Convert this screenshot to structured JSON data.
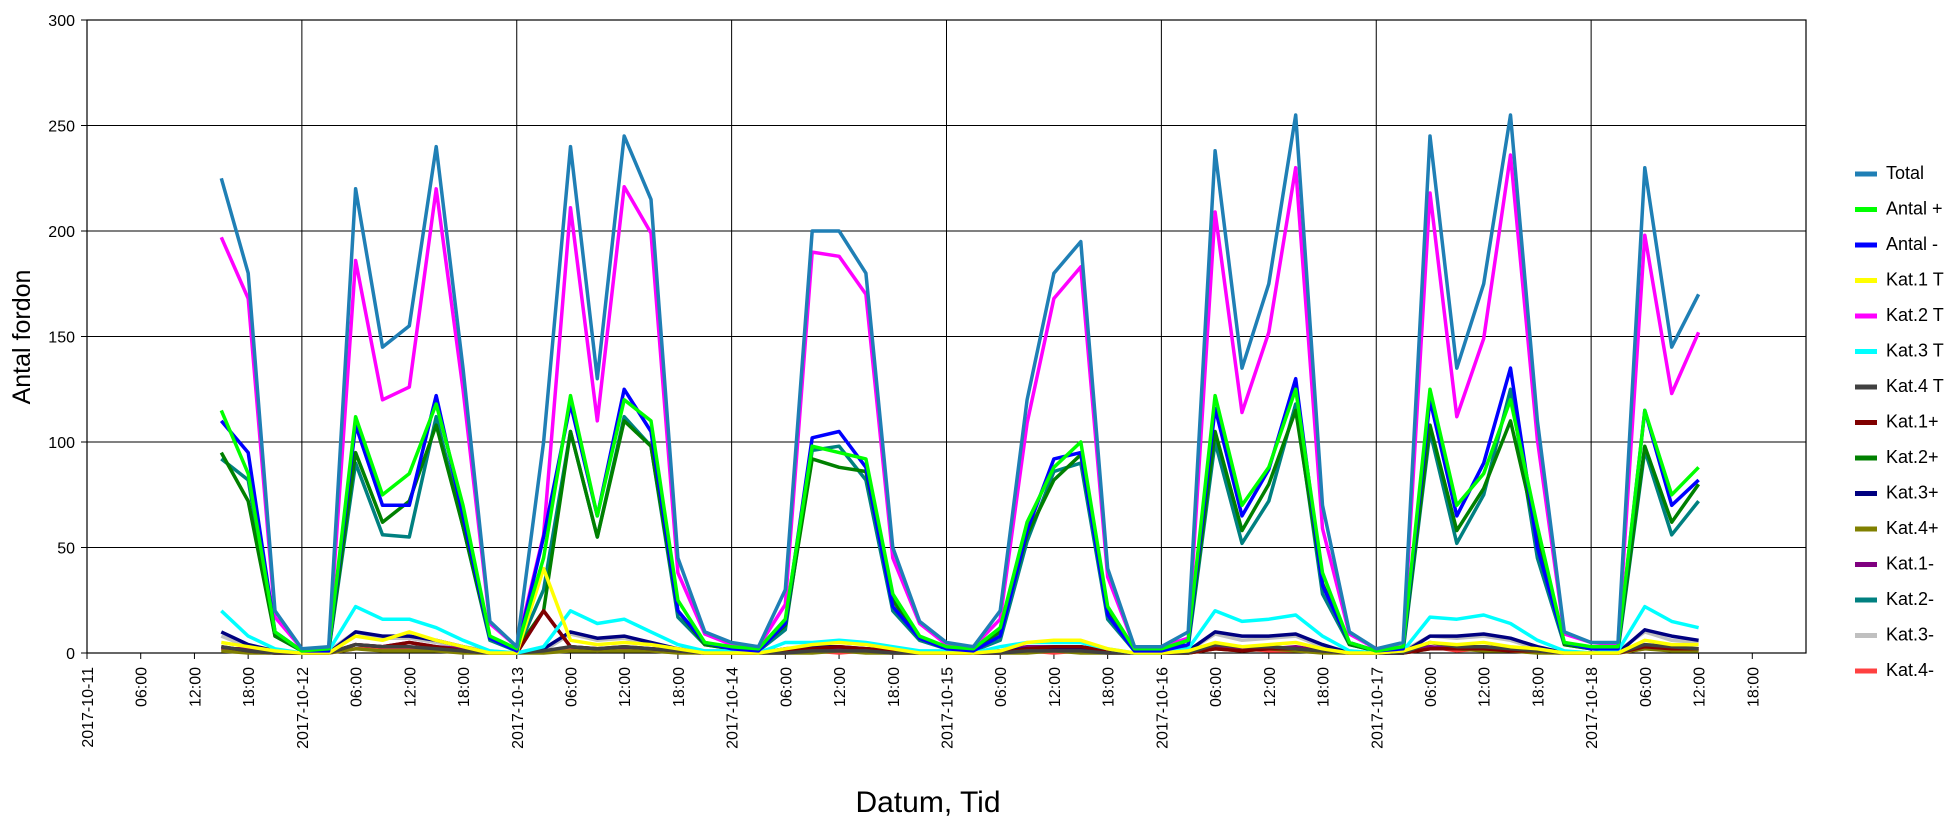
{
  "chart_data": {
    "type": "line",
    "y_label": "Antal fordon",
    "x_label": "Datum, Tid",
    "x": [
      "2017-10-11 15:00",
      "2017-10-11 18:00",
      "2017-10-11 21:00",
      "2017-10-12 00:00",
      "2017-10-12 03:00",
      "2017-10-12 06:00",
      "2017-10-12 09:00",
      "2017-10-12 12:00",
      "2017-10-12 15:00",
      "2017-10-12 18:00",
      "2017-10-12 21:00",
      "2017-10-13 00:00",
      "2017-10-13 03:00",
      "2017-10-13 06:00",
      "2017-10-13 09:00",
      "2017-10-13 12:00",
      "2017-10-13 15:00",
      "2017-10-13 18:00",
      "2017-10-13 21:00",
      "2017-10-14 00:00",
      "2017-10-14 03:00",
      "2017-10-14 06:00",
      "2017-10-14 09:00",
      "2017-10-14 12:00",
      "2017-10-14 15:00",
      "2017-10-14 18:00",
      "2017-10-14 21:00",
      "2017-10-15 00:00",
      "2017-10-15 03:00",
      "2017-10-15 06:00",
      "2017-10-15 09:00",
      "2017-10-15 12:00",
      "2017-10-15 15:00",
      "2017-10-15 18:00",
      "2017-10-15 21:00",
      "2017-10-16 00:00",
      "2017-10-16 03:00",
      "2017-10-16 06:00",
      "2017-10-16 09:00",
      "2017-10-16 12:00",
      "2017-10-16 15:00",
      "2017-10-16 18:00",
      "2017-10-16 21:00",
      "2017-10-17 00:00",
      "2017-10-17 03:00",
      "2017-10-17 06:00",
      "2017-10-17 09:00",
      "2017-10-17 12:00",
      "2017-10-17 15:00",
      "2017-10-17 18:00",
      "2017-10-17 21:00",
      "2017-10-18 00:00",
      "2017-10-18 03:00",
      "2017-10-18 06:00",
      "2017-10-18 09:00",
      "2017-10-18 12:00"
    ],
    "xlim": [
      "2017-10-11 00:00",
      "2017-10-19 00:00"
    ],
    "xticks": [
      {
        "value": "2017-10-11 00:00",
        "label": "2017-10-11"
      },
      {
        "value": "2017-10-11 06:00",
        "label": "06:00"
      },
      {
        "value": "2017-10-11 12:00",
        "label": "12:00"
      },
      {
        "value": "2017-10-11 18:00",
        "label": "18:00"
      },
      {
        "value": "2017-10-12 00:00",
        "label": "2017-10-12"
      },
      {
        "value": "2017-10-12 06:00",
        "label": "06:00"
      },
      {
        "value": "2017-10-12 12:00",
        "label": "12:00"
      },
      {
        "value": "2017-10-12 18:00",
        "label": "18:00"
      },
      {
        "value": "2017-10-13 00:00",
        "label": "2017-10-13"
      },
      {
        "value": "2017-10-13 06:00",
        "label": "06:00"
      },
      {
        "value": "2017-10-13 12:00",
        "label": "12:00"
      },
      {
        "value": "2017-10-13 18:00",
        "label": "18:00"
      },
      {
        "value": "2017-10-14 00:00",
        "label": "2017-10-14"
      },
      {
        "value": "2017-10-14 06:00",
        "label": "06:00"
      },
      {
        "value": "2017-10-14 12:00",
        "label": "12:00"
      },
      {
        "value": "2017-10-14 18:00",
        "label": "18:00"
      },
      {
        "value": "2017-10-15 00:00",
        "label": "2017-10-15"
      },
      {
        "value": "2017-10-15 06:00",
        "label": "06:00"
      },
      {
        "value": "2017-10-15 12:00",
        "label": "12:00"
      },
      {
        "value": "2017-10-15 18:00",
        "label": "18:00"
      },
      {
        "value": "2017-10-16 00:00",
        "label": "2017-10-16"
      },
      {
        "value": "2017-10-16 06:00",
        "label": "06:00"
      },
      {
        "value": "2017-10-16 12:00",
        "label": "12:00"
      },
      {
        "value": "2017-10-16 18:00",
        "label": "18:00"
      },
      {
        "value": "2017-10-17 00:00",
        "label": "2017-10-17"
      },
      {
        "value": "2017-10-17 06:00",
        "label": "06:00"
      },
      {
        "value": "2017-10-17 12:00",
        "label": "12:00"
      },
      {
        "value": "2017-10-17 18:00",
        "label": "18:00"
      },
      {
        "value": "2017-10-18 00:00",
        "label": "2017-10-18"
      },
      {
        "value": "2017-10-18 06:00",
        "label": "06:00"
      },
      {
        "value": "2017-10-18 12:00",
        "label": "12:00"
      },
      {
        "value": "2017-10-18 18:00",
        "label": "18:00"
      }
    ],
    "ylim": [
      0,
      300
    ],
    "yticks": [
      0,
      50,
      100,
      150,
      200,
      250,
      300
    ],
    "grid": true,
    "legend": "right",
    "series": [
      {
        "name": "Total",
        "color": "#1f7fb5",
        "values": [
          225,
          180,
          20,
          2,
          3,
          220,
          145,
          155,
          240,
          135,
          15,
          3,
          100,
          240,
          130,
          245,
          215,
          45,
          10,
          5,
          3,
          30,
          200,
          200,
          180,
          50,
          15,
          5,
          3,
          20,
          120,
          180,
          195,
          40,
          3,
          3,
          10,
          238,
          135,
          175,
          255,
          70,
          10,
          2,
          5,
          245,
          135,
          175,
          255,
          110,
          10,
          5,
          5,
          230,
          145,
          170
        ]
      },
      {
        "name": "Antal +",
        "color": "#00ff00",
        "values": [
          115,
          85,
          10,
          1,
          2,
          112,
          75,
          85,
          118,
          70,
          8,
          2,
          45,
          122,
          65,
          120,
          110,
          25,
          5,
          3,
          2,
          16,
          98,
          95,
          92,
          28,
          8,
          3,
          2,
          12,
          62,
          88,
          100,
          22,
          2,
          2,
          6,
          122,
          70,
          88,
          125,
          38,
          5,
          1,
          3,
          125,
          70,
          85,
          120,
          60,
          5,
          3,
          3,
          115,
          75,
          88
        ]
      },
      {
        "name": "Antal -",
        "color": "#0000ff",
        "values": [
          110,
          95,
          10,
          1,
          1,
          108,
          70,
          70,
          122,
          65,
          7,
          1,
          55,
          118,
          65,
          125,
          105,
          20,
          5,
          2,
          1,
          14,
          102,
          105,
          88,
          22,
          7,
          2,
          1,
          8,
          58,
          92,
          95,
          18,
          1,
          1,
          4,
          116,
          65,
          87,
          130,
          32,
          5,
          1,
          2,
          120,
          65,
          90,
          135,
          50,
          5,
          2,
          2,
          115,
          70,
          82
        ]
      },
      {
        "name": "Kat.1 T",
        "color": "#ffff00",
        "values": [
          5,
          3,
          1,
          0,
          0,
          8,
          6,
          10,
          6,
          3,
          0,
          0,
          40,
          6,
          4,
          5,
          4,
          2,
          0,
          0,
          0,
          2,
          4,
          5,
          4,
          2,
          0,
          0,
          0,
          1,
          5,
          6,
          6,
          2,
          0,
          0,
          1,
          5,
          3,
          4,
          5,
          2,
          0,
          0,
          1,
          5,
          4,
          5,
          3,
          2,
          0,
          0,
          0,
          6,
          4,
          4
        ]
      },
      {
        "name": "Kat.2 T",
        "color": "#ff00ff",
        "values": [
          197,
          168,
          17,
          2,
          2,
          186,
          120,
          126,
          220,
          125,
          14,
          3,
          56,
          211,
          110,
          221,
          199,
          38,
          9,
          4,
          3,
          23,
          190,
          188,
          170,
          45,
          14,
          4,
          3,
          16,
          109,
          168,
          183,
          36,
          3,
          3,
          7,
          209,
          114,
          152,
          230,
          59,
          9,
          2,
          3,
          218,
          112,
          149,
          236,
          101,
          9,
          5,
          4,
          198,
          123,
          152
        ]
      },
      {
        "name": "Kat.3 T",
        "color": "#00ffff",
        "values": [
          20,
          8,
          2,
          0,
          1,
          22,
          16,
          16,
          12,
          6,
          1,
          0,
          3,
          20,
          14,
          16,
          10,
          4,
          1,
          1,
          0,
          5,
          5,
          6,
          5,
          3,
          1,
          1,
          0,
          3,
          5,
          5,
          5,
          2,
          0,
          0,
          2,
          20,
          15,
          16,
          18,
          8,
          1,
          0,
          1,
          17,
          16,
          18,
          14,
          6,
          1,
          0,
          1,
          22,
          15,
          12
        ]
      },
      {
        "name": "Kat.4 T",
        "color": "#404040",
        "values": [
          3,
          1,
          0,
          0,
          0,
          4,
          3,
          3,
          2,
          1,
          0,
          0,
          1,
          3,
          2,
          3,
          2,
          1,
          0,
          0,
          0,
          0,
          1,
          1,
          1,
          0,
          0,
          0,
          0,
          0,
          1,
          1,
          1,
          0,
          0,
          0,
          0,
          4,
          3,
          3,
          2,
          1,
          0,
          0,
          0,
          5,
          3,
          3,
          2,
          1,
          0,
          0,
          0,
          4,
          3,
          2
        ]
      },
      {
        "name": "Kat.1+",
        "color": "#800000",
        "values": [
          3,
          1,
          0,
          0,
          0,
          4,
          3,
          5,
          3,
          1,
          0,
          0,
          20,
          3,
          2,
          3,
          2,
          1,
          0,
          0,
          0,
          1,
          2,
          3,
          2,
          1,
          0,
          0,
          0,
          0,
          2,
          3,
          3,
          1,
          0,
          0,
          0,
          2,
          1,
          2,
          2,
          1,
          0,
          0,
          0,
          2,
          2,
          2,
          1,
          1,
          0,
          0,
          0,
          3,
          2,
          2
        ]
      },
      {
        "name": "Kat.2+",
        "color": "#008000",
        "values": [
          95,
          72,
          8,
          1,
          1,
          95,
          62,
          72,
          108,
          60,
          7,
          2,
          20,
          105,
          55,
          110,
          98,
          20,
          4,
          2,
          2,
          13,
          92,
          88,
          86,
          25,
          7,
          2,
          2,
          10,
          56,
          82,
          94,
          20,
          2,
          2,
          4,
          105,
          58,
          80,
          115,
          33,
          4,
          1,
          2,
          108,
          58,
          78,
          110,
          55,
          4,
          2,
          2,
          98,
          62,
          80
        ]
      },
      {
        "name": "Kat.3+",
        "color": "#000080",
        "values": [
          10,
          4,
          1,
          0,
          0,
          10,
          8,
          8,
          6,
          3,
          0,
          0,
          2,
          10,
          7,
          8,
          5,
          2,
          0,
          0,
          0,
          2,
          3,
          3,
          2,
          1,
          0,
          0,
          0,
          1,
          2,
          2,
          2,
          1,
          0,
          0,
          1,
          10,
          8,
          8,
          9,
          4,
          0,
          0,
          0,
          8,
          8,
          9,
          7,
          3,
          0,
          0,
          0,
          11,
          8,
          6
        ]
      },
      {
        "name": "Kat.4+",
        "color": "#808000",
        "values": [
          1,
          0,
          0,
          0,
          0,
          2,
          1,
          1,
          1,
          0,
          0,
          0,
          0,
          1,
          1,
          1,
          1,
          0,
          0,
          0,
          0,
          0,
          0,
          1,
          0,
          0,
          0,
          0,
          0,
          0,
          0,
          1,
          0,
          0,
          0,
          0,
          0,
          2,
          1,
          2,
          1,
          0,
          0,
          0,
          0,
          2,
          2,
          1,
          1,
          0,
          0,
          0,
          0,
          2,
          1,
          1
        ]
      },
      {
        "name": "Kat.1-",
        "color": "#800080",
        "values": [
          2,
          2,
          1,
          0,
          0,
          4,
          3,
          5,
          3,
          2,
          0,
          0,
          20,
          3,
          2,
          2,
          2,
          1,
          0,
          0,
          0,
          1,
          2,
          2,
          2,
          1,
          0,
          0,
          0,
          1,
          3,
          3,
          3,
          1,
          0,
          0,
          1,
          3,
          2,
          2,
          3,
          1,
          0,
          0,
          1,
          3,
          2,
          3,
          2,
          1,
          0,
          0,
          0,
          3,
          2,
          2
        ]
      },
      {
        "name": "Kat.2-",
        "color": "#008080",
        "values": [
          92,
          82,
          8,
          1,
          1,
          90,
          56,
          55,
          112,
          60,
          6,
          1,
          30,
          105,
          55,
          112,
          98,
          17,
          4,
          2,
          1,
          11,
          96,
          98,
          82,
          20,
          6,
          2,
          1,
          6,
          53,
          86,
          90,
          16,
          1,
          1,
          3,
          100,
          52,
          72,
          118,
          28,
          4,
          1,
          1,
          105,
          52,
          75,
          125,
          45,
          4,
          2,
          1,
          96,
          56,
          72
        ]
      },
      {
        "name": "Kat.3-",
        "color": "#c0c0c0",
        "values": [
          8,
          3,
          1,
          0,
          1,
          10,
          7,
          7,
          5,
          3,
          1,
          0,
          1,
          9,
          6,
          7,
          4,
          2,
          1,
          1,
          0,
          2,
          2,
          2,
          2,
          1,
          0,
          0,
          0,
          1,
          2,
          2,
          2,
          1,
          0,
          0,
          1,
          9,
          6,
          7,
          8,
          3,
          1,
          0,
          1,
          8,
          7,
          8,
          6,
          2,
          0,
          0,
          1,
          10,
          6,
          5
        ]
      },
      {
        "name": "Kat.4-",
        "color": "#ff4040",
        "values": [
          2,
          1,
          0,
          0,
          0,
          2,
          2,
          2,
          1,
          1,
          0,
          0,
          1,
          2,
          1,
          2,
          1,
          1,
          0,
          0,
          0,
          0,
          1,
          0,
          1,
          0,
          0,
          0,
          0,
          0,
          1,
          0,
          1,
          0,
          0,
          0,
          0,
          2,
          2,
          1,
          1,
          1,
          0,
          0,
          0,
          3,
          1,
          2,
          1,
          1,
          0,
          0,
          0,
          2,
          2,
          1
        ]
      }
    ]
  }
}
